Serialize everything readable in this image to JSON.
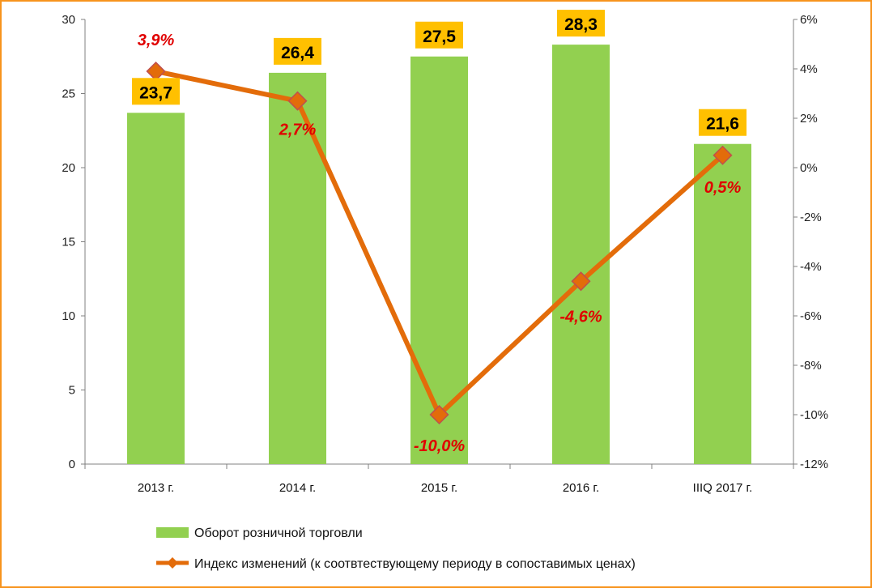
{
  "chart_data": {
    "type": "bar+line",
    "categories": [
      "2013 г.",
      "2014 г.",
      "2015 г.",
      "2016 г.",
      "IIIQ 2017 г."
    ],
    "series": [
      {
        "name": "Оборот розничной торговли",
        "type": "bar",
        "axis": "left",
        "values": [
          23.7,
          26.4,
          27.5,
          28.3,
          21.6
        ],
        "labels": [
          "23,7",
          "26,4",
          "27,5",
          "28,3",
          "21,6"
        ],
        "color": "#92D050",
        "label_bg": "#FFC000"
      },
      {
        "name": "Индекс изменений (к соотвтествующему периоду в сопоставимых ценах)",
        "type": "line",
        "axis": "right",
        "values": [
          3.9,
          2.7,
          -10.0,
          -4.6,
          0.5
        ],
        "labels": [
          "3,9%",
          "2,7%",
          "-10,0%",
          "-4,6%",
          "0,5%"
        ],
        "color": "#E36C0A",
        "label_color": "#E00000"
      }
    ],
    "y_left": {
      "min": 0,
      "max": 30,
      "ticks": [
        0,
        5,
        10,
        15,
        20,
        25,
        30
      ],
      "tick_labels": [
        "0",
        "5",
        "10",
        "15",
        "20",
        "25",
        "30"
      ]
    },
    "y_right": {
      "min": -12,
      "max": 6,
      "ticks": [
        -12,
        -10,
        -8,
        -6,
        -4,
        -2,
        0,
        2,
        4,
        6
      ],
      "tick_labels": [
        "-12%",
        "-10%",
        "-8%",
        "-6%",
        "-4%",
        "-2%",
        "0%",
        "2%",
        "4%",
        "6%"
      ]
    },
    "grid": false,
    "legend_position": "bottom-center"
  },
  "colors": {
    "frame_border": "#F7941D",
    "axis": "#808080"
  }
}
